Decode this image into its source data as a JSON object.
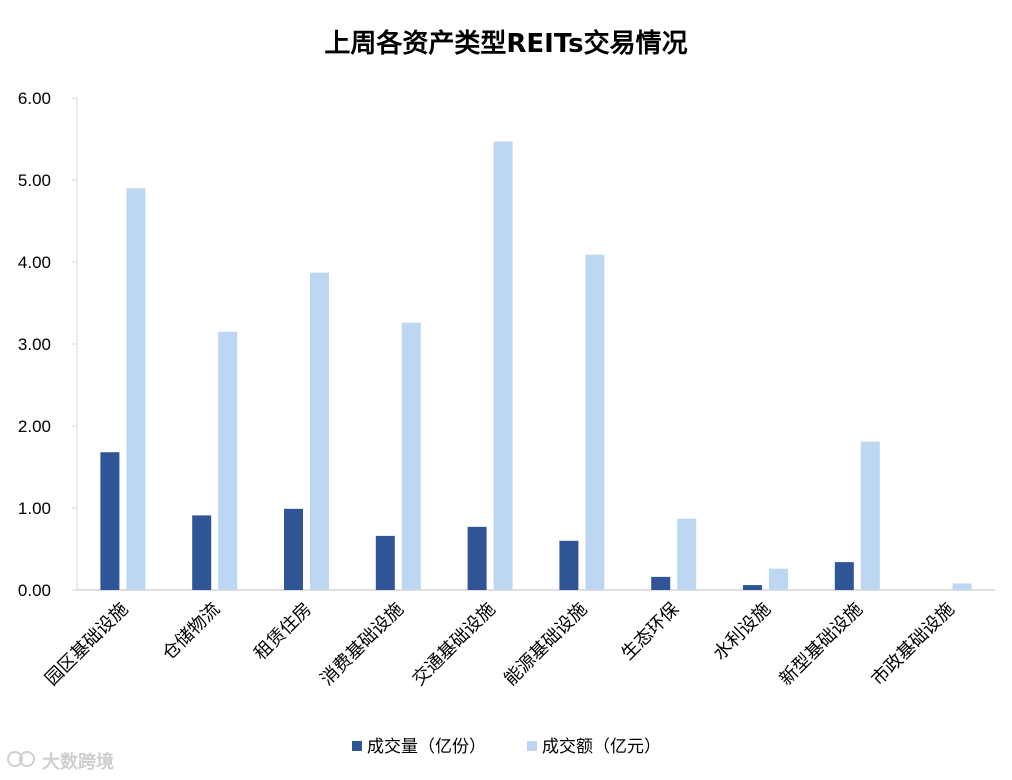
{
  "chart_data": {
    "type": "bar",
    "title": "上周各资产类型REITs交易情况",
    "categories": [
      "园区基础设施",
      "仓储物流",
      "租赁住房",
      "消费基础设施",
      "交通基础设施",
      "能源基础设施",
      "生态环保",
      "水利设施",
      "新型基础设施",
      "市政基础设施"
    ],
    "series": [
      {
        "name": "成交量（亿份）",
        "color": "#2f5597",
        "values": [
          1.68,
          0.91,
          0.99,
          0.66,
          0.77,
          0.6,
          0.16,
          0.06,
          0.34,
          0.0
        ]
      },
      {
        "name": "成交额（亿元）",
        "color": "#bdd7f3",
        "values": [
          4.9,
          3.15,
          3.87,
          3.26,
          5.47,
          4.09,
          0.87,
          0.26,
          1.81,
          0.08
        ]
      }
    ],
    "ylim": [
      0,
      6
    ],
    "yticks": [
      "0.00",
      "1.00",
      "2.00",
      "3.00",
      "4.00",
      "5.00",
      "6.00"
    ],
    "grid": false,
    "legend_position": "bottom"
  },
  "watermark": "大数跨境",
  "watermark_icon": "brand-logo-icon"
}
